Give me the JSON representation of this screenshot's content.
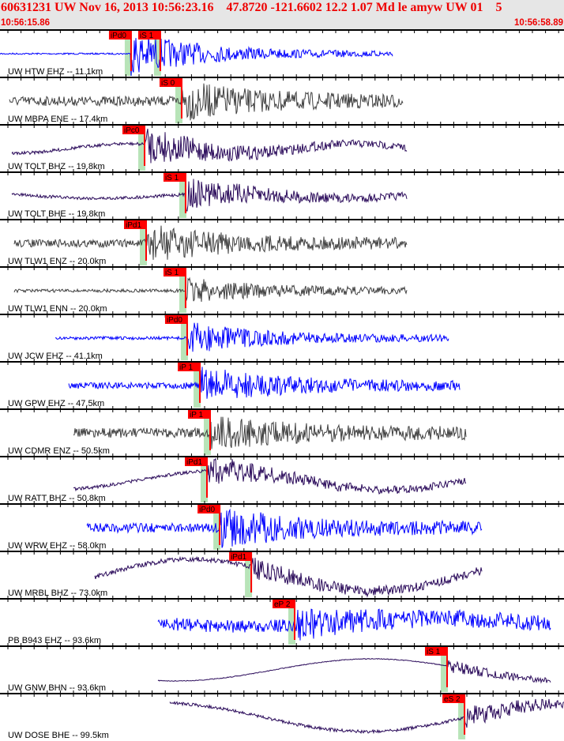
{
  "header": {
    "title": "60631231 UW Nov 16, 2013 10:56:23.16    47.8720 -121.6602 12.2 1.07 Md le amyw UW 01    5",
    "start_time": "10:56:15.86",
    "end_time": "10:56:58.89"
  },
  "chart_data": {
    "type": "line",
    "title": "60631231 UW Nov 16, 2013 10:56:23.16    47.8720 -121.6602 12.2 1.07 Md le amyw UW 01    5",
    "x_range_seconds_after_10_56": [
      15.86,
      58.89
    ],
    "grid": false,
    "colors": {
      "blue": "#0000ff",
      "gray": "#404040",
      "purple": "#2a0a5a",
      "pick": "#ff0000",
      "window": "#b8e4b8"
    },
    "traces": [
      {
        "label": "UW HTW EHZ -- 11.1km",
        "color": "#0000ff",
        "picks": [
          {
            "label": "iPd0",
            "time": 25.86
          },
          {
            "label": "iS 1",
            "time": 28.09
          }
        ]
      },
      {
        "label": "UW MBPA ENE -- 17.4km",
        "color": "#404040",
        "picks": [
          {
            "label": "iS 0",
            "time": 29.72
          }
        ]
      },
      {
        "label": "UW TOLT BHZ -- 19.8km",
        "color": "#2a0a5a",
        "picks": [
          {
            "label": "iPc0",
            "time": 26.89
          }
        ]
      },
      {
        "label": "UW TOLT BHE -- 19.8km",
        "color": "#2a0a5a",
        "picks": [
          {
            "label": "iS 1",
            "time": 30.02
          }
        ]
      },
      {
        "label": "UW TLW1 ENZ -- 20.0km",
        "color": "#404040",
        "picks": [
          {
            "label": "iPd1",
            "time": 27.01
          }
        ]
      },
      {
        "label": "UW TLW1 ENN -- 20.0km",
        "color": "#404040",
        "picks": [
          {
            "label": "iS 1",
            "time": 30.02
          }
        ]
      },
      {
        "label": "UW JCW EHZ -- 41.1km",
        "color": "#0000ff",
        "picks": [
          {
            "label": "iPd0",
            "time": 30.14
          }
        ]
      },
      {
        "label": "UW GPW EHZ -- 47.5km",
        "color": "#0000ff",
        "picks": [
          {
            "label": "iP 1",
            "time": 31.11
          }
        ]
      },
      {
        "label": "UW CDMR ENZ -- 50.5km",
        "color": "#404040",
        "picks": [
          {
            "label": "iP 1",
            "time": 31.89
          }
        ]
      },
      {
        "label": "UW RATT BHZ -- 50.8km",
        "color": "#2a0a5a",
        "picks": [
          {
            "label": "iPd1",
            "time": 31.65
          }
        ]
      },
      {
        "label": "UW WRW EHZ -- 58.0km",
        "color": "#0000ff",
        "picks": [
          {
            "label": "iPd0",
            "time": 32.62
          }
        ]
      },
      {
        "label": "UW MRBL BHZ -- 73.0km",
        "color": "#2a0a5a",
        "picks": [
          {
            "label": "iPd1",
            "time": 35.03
          }
        ]
      },
      {
        "label": "PB B943 EHZ -- 93.6km",
        "color": "#0000ff",
        "picks": [
          {
            "label": "eP 2",
            "time": 38.34
          }
        ]
      },
      {
        "label": "UW GNW BHN -- 93.6km",
        "color": "#2a0a5a",
        "picks": [
          {
            "label": "iS 1",
            "time": 49.97
          }
        ]
      },
      {
        "label": "UW DOSE BHE -- 99.5km",
        "color": "#2a0a5a",
        "picks": [
          {
            "label": "eS 2",
            "time": 51.3
          }
        ]
      }
    ]
  }
}
